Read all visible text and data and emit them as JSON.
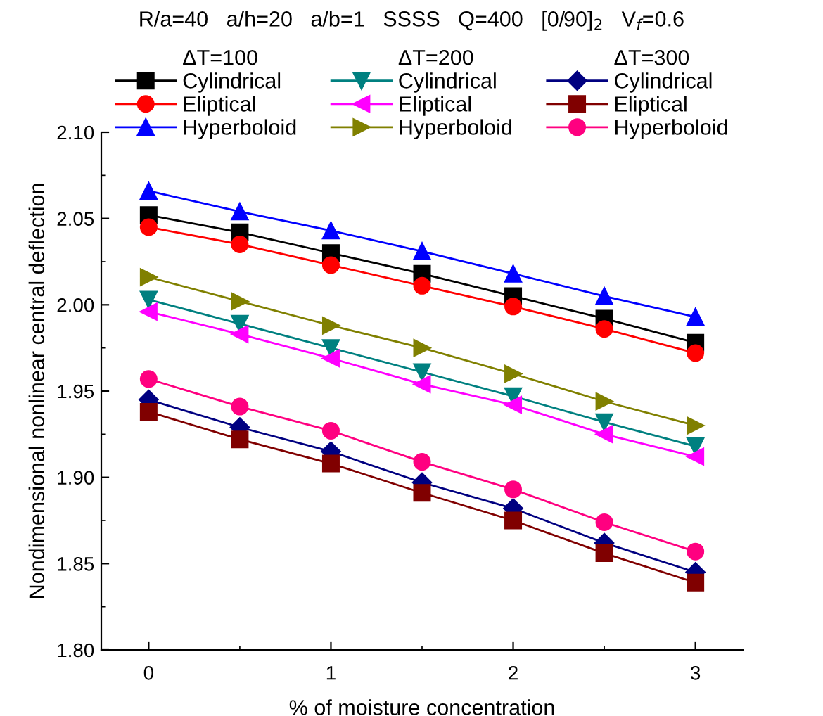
{
  "chart_data": {
    "type": "line",
    "title": "R/a=40   a/h=20   a/b=1   SSSS   Q=400   [0/90]$_{2}$   V$_{f}$=0.6",
    "xlabel": "% of moisture concentration",
    "ylabel": "Nondimensional nonlinear central deflection",
    "annotations": [
      "ΔT=100",
      "ΔT=200",
      "ΔT=300"
    ],
    "x": [
      0,
      0.5,
      1,
      1.5,
      2,
      2.5,
      3
    ],
    "series": [
      {
        "name": "Cylindrical",
        "color": "#000000",
        "marker": "square",
        "values": [
          2.052,
          2.042,
          2.03,
          2.018,
          2.005,
          1.992,
          1.978
        ]
      },
      {
        "name": "Eliptical",
        "color": "#ff0000",
        "marker": "circle",
        "values": [
          2.045,
          2.035,
          2.023,
          2.011,
          1.999,
          1.986,
          1.972
        ]
      },
      {
        "name": "Hyperboloid",
        "color": "#0000ff",
        "marker": "triangle",
        "values": [
          2.066,
          2.054,
          2.043,
          2.031,
          2.018,
          2.005,
          1.993
        ]
      },
      {
        "name": "Cylindrical",
        "color": "#008080",
        "marker": "triangle_down",
        "values": [
          2.003,
          1.989,
          1.975,
          1.961,
          1.947,
          1.932,
          1.918
        ]
      },
      {
        "name": "Eliptical",
        "color": "#ff00ff",
        "marker": "triangle_left",
        "values": [
          1.996,
          1.983,
          1.969,
          1.954,
          1.942,
          1.925,
          1.912
        ]
      },
      {
        "name": "Hyperboloid",
        "color": "#808000",
        "marker": "triangle_right",
        "values": [
          2.016,
          2.002,
          1.988,
          1.975,
          1.96,
          1.944,
          1.93
        ]
      },
      {
        "name": "Cylindrical",
        "color": "#000080",
        "marker": "diamond",
        "values": [
          1.945,
          1.929,
          1.915,
          1.897,
          1.882,
          1.862,
          1.845
        ]
      },
      {
        "name": "Eliptical",
        "color": "#800000",
        "marker": "square",
        "values": [
          1.938,
          1.922,
          1.908,
          1.891,
          1.875,
          1.856,
          1.839
        ]
      },
      {
        "name": "Hyperboloid",
        "color": "#ff0080",
        "marker": "circle",
        "values": [
          1.957,
          1.941,
          1.927,
          1.909,
          1.893,
          1.874,
          1.857
        ]
      }
    ],
    "xlim": [
      -0.26,
      3.26
    ],
    "xticks": [
      0,
      1,
      2,
      3
    ],
    "ylim": [
      1.8,
      2.1
    ],
    "yticks": [
      {
        "value": 1.8,
        "label": "1.80"
      },
      1.85,
      {
        "value": 1.9,
        "label": "1.90"
      },
      1.95,
      {
        "value": 2.0,
        "label": "2.00"
      },
      2.05,
      {
        "value": 2.1,
        "label": "2.10"
      }
    ],
    "grid": false,
    "legend": "top",
    "line_style": "solid"
  }
}
